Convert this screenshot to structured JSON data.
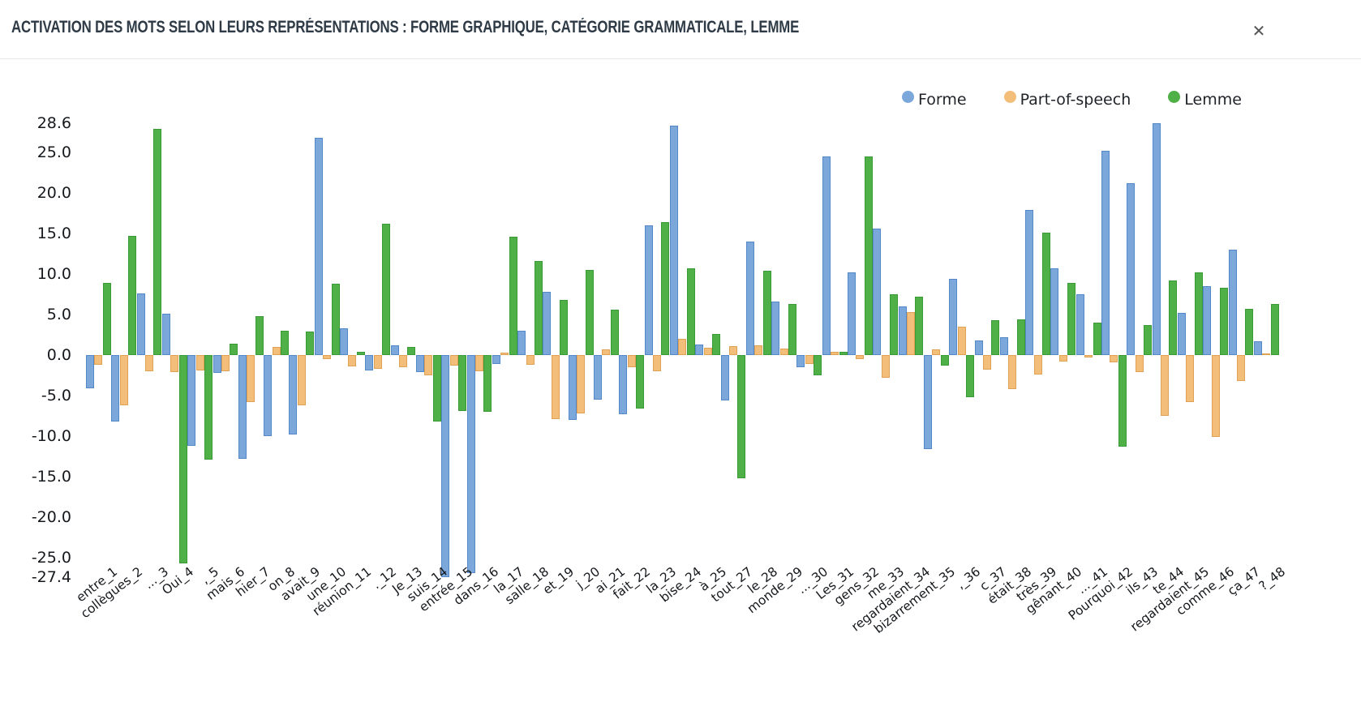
{
  "header": {
    "title": "ACTIVATION DES MOTS SELON LEURS REPRÉSENTATIONS : FORME GRAPHIQUE, CATÉGORIE GRAMMATICALE, LEMME",
    "close_label": "✕"
  },
  "chart_data": {
    "type": "bar",
    "title": "Activation des mots selon leurs représentations : forme graphique, catégorie grammaticale, lemme",
    "xlabel": "",
    "ylabel": "",
    "grid": false,
    "legend_position": "top-right",
    "ylim": [
      -27.4,
      28.6
    ],
    "y_ticks": [
      {
        "v": 28.6,
        "label": "28.6"
      },
      {
        "v": 25.0,
        "label": "25.0"
      },
      {
        "v": 20.0,
        "label": "20.0"
      },
      {
        "v": 15.0,
        "label": "15.0"
      },
      {
        "v": 10.0,
        "label": "10.0"
      },
      {
        "v": 5.0,
        "label": "5.0"
      },
      {
        "v": 0.0,
        "label": "0.0"
      },
      {
        "v": -5.0,
        "label": "-5.0"
      },
      {
        "v": -10.0,
        "label": "-10.0"
      },
      {
        "v": -15.0,
        "label": "-15.0"
      },
      {
        "v": -20.0,
        "label": "-20.0"
      },
      {
        "v": -25.0,
        "label": "-25.0"
      },
      {
        "v": -27.4,
        "label": "-27.4"
      }
    ],
    "categories": [
      "entre_1",
      "collègues_2",
      "..._3",
      "Oui_4",
      ",_5",
      "mais_6",
      "hier_7",
      "on_8",
      "avait_9",
      "une_10",
      "réunion_11",
      "._12",
      "Je_13",
      "suis_14",
      "entrée_15",
      "dans_16",
      "la_17",
      "salle_18",
      "et_19",
      "j_20",
      "ai_21",
      "fait_22",
      "la_23",
      "bise_24",
      "à_25",
      "tout_27",
      "le_28",
      "monde_29",
      "..._30",
      "Les_31",
      "gens_32",
      "me_33",
      "regardaient_34",
      "bizarrement_35",
      ",_36",
      "c_37",
      "était_38",
      "très_39",
      "gênant_40",
      "..._41",
      "Pourquoi_42",
      "ils_43",
      "te_44",
      "regardaient_45",
      "comme_46",
      "ça_47",
      "?_48"
    ],
    "series": [
      {
        "name": "Forme",
        "color": "#7BA7DB",
        "border_color": "#5588C8",
        "values": [
          -4.1,
          -8.2,
          7.6,
          5.1,
          -11.2,
          -2.2,
          -12.8,
          -10.0,
          -9.8,
          26.8,
          3.3,
          -1.9,
          1.2,
          -2.1,
          -27.4,
          -26.9,
          -1.1,
          3.0,
          7.8,
          -8.0,
          -5.5,
          -7.3,
          16.0,
          28.3,
          1.3,
          -5.6,
          14.0,
          6.6,
          -1.5,
          24.5,
          10.2,
          15.6,
          6.0,
          -11.6,
          9.4,
          1.8,
          2.2,
          17.9,
          10.7,
          7.5,
          25.2,
          21.2,
          28.6,
          5.2,
          8.5,
          13.0,
          1.7
        ]
      },
      {
        "name": "Part-of-speech",
        "color": "#F2BE7A",
        "border_color": "#DFA254",
        "values": [
          -1.2,
          -6.2,
          -2.0,
          -2.1,
          -1.9,
          -2.0,
          -5.8,
          1.0,
          -6.2,
          -0.5,
          -1.4,
          -1.7,
          -1.5,
          -2.5,
          -1.3,
          -2.0,
          0.3,
          -1.2,
          -7.9,
          -7.2,
          0.7,
          -1.5,
          -2.0,
          2.0,
          0.9,
          1.1,
          1.2,
          0.8,
          -1.1,
          0.4,
          -0.5,
          -2.8,
          5.3,
          0.7,
          3.5,
          -1.8,
          -4.2,
          -2.4,
          -0.8,
          -0.3,
          -0.9,
          -2.1,
          -7.5,
          -5.8,
          -10.1,
          -3.2,
          0.2
        ]
      },
      {
        "name": "Lemme",
        "color": "#4FB047",
        "border_color": "#3A9A35",
        "values": [
          8.9,
          14.7,
          27.9,
          -25.7,
          -12.9,
          1.4,
          4.8,
          3.0,
          2.9,
          8.8,
          0.4,
          16.2,
          1.0,
          -8.2,
          -6.9,
          -7.0,
          14.6,
          11.6,
          6.8,
          10.5,
          5.6,
          -6.6,
          16.4,
          10.7,
          2.6,
          -15.2,
          10.4,
          6.3,
          -2.5,
          0.4,
          24.5,
          7.5,
          7.2,
          -1.3,
          -5.2,
          4.3,
          4.4,
          15.1,
          8.9,
          4.0,
          -11.3,
          3.7,
          9.2,
          10.2,
          8.3,
          5.7,
          6.3
        ]
      }
    ]
  }
}
